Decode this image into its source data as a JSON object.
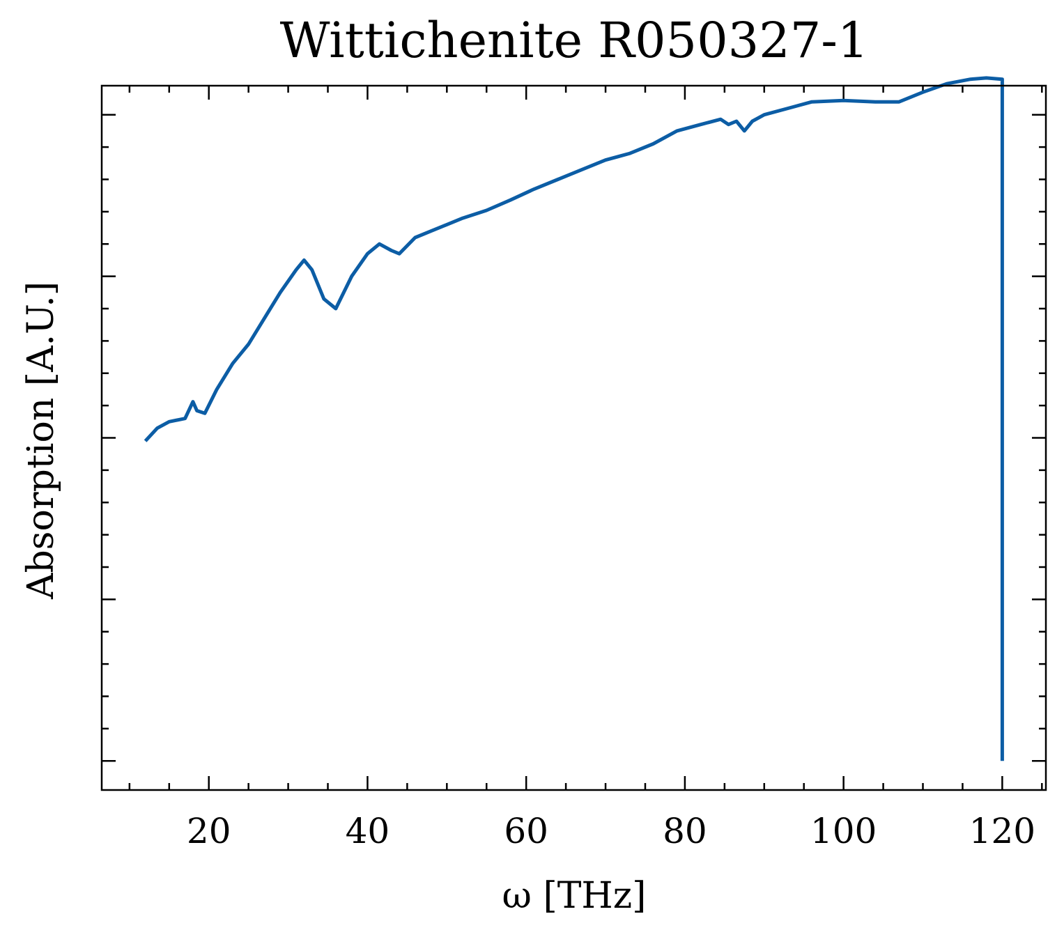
{
  "chart_data": {
    "type": "line",
    "title": "Wittichenite R050327-1",
    "xlabel": "ω [THz]",
    "ylabel": "Absorption [A.U.]",
    "xlim": [
      6.5,
      125.5
    ],
    "ylim": [
      -0.045,
      1.045
    ],
    "x_ticks": [
      20,
      40,
      60,
      80,
      100,
      120
    ],
    "x_tick_labels": [
      "20",
      "40",
      "60",
      "80",
      "100",
      "120"
    ],
    "y_ticks": [
      0.0,
      0.25,
      0.5,
      0.75,
      1.0
    ],
    "y_tick_labels_visible": false,
    "grid": false,
    "legend": "none",
    "series": [
      {
        "color": "#0c5da5",
        "x": [
          12.0,
          13.5,
          15.0,
          17.0,
          18.0,
          18.5,
          19.5,
          21.0,
          23.0,
          25.0,
          27.0,
          29.0,
          31.0,
          32.0,
          33.0,
          34.5,
          36.0,
          38.0,
          40.0,
          41.5,
          43.0,
          44.0,
          46.0,
          48.0,
          50.0,
          52.0,
          55.0,
          58.0,
          61.0,
          64.0,
          67.0,
          70.0,
          73.0,
          76.0,
          79.0,
          82.0,
          84.5,
          85.5,
          86.5,
          87.5,
          88.5,
          90.0,
          93.0,
          96.0,
          100.0,
          104.0,
          107.0,
          110.0,
          113.0,
          116.0,
          118.0,
          120.0,
          120.0
        ],
        "y": [
          0.495,
          0.515,
          0.525,
          0.53,
          0.556,
          0.542,
          0.538,
          0.575,
          0.615,
          0.645,
          0.685,
          0.725,
          0.76,
          0.775,
          0.76,
          0.715,
          0.7,
          0.75,
          0.785,
          0.8,
          0.79,
          0.785,
          0.81,
          0.82,
          0.83,
          0.84,
          0.852,
          0.868,
          0.885,
          0.9,
          0.915,
          0.93,
          0.94,
          0.955,
          0.975,
          0.985,
          0.993,
          0.985,
          0.99,
          0.975,
          0.99,
          1.0,
          1.01,
          1.02,
          1.022,
          1.02,
          1.02,
          1.035,
          1.048,
          1.055,
          1.057,
          1.055,
          0.0
        ]
      }
    ]
  }
}
